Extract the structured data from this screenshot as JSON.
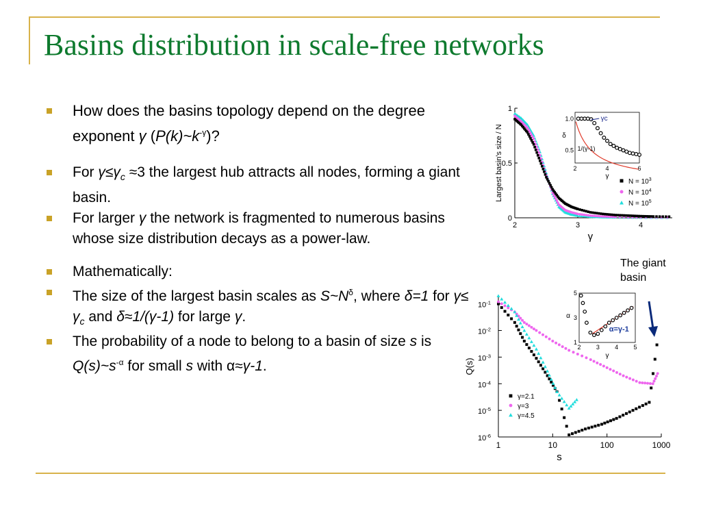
{
  "slide": {
    "title": "Basins distribution in scale-free networks",
    "bullets": [
      {
        "parts": [
          {
            "t": "How does the basins topology depend on the degree exponent "
          },
          {
            "t": "γ",
            "i": true
          },
          {
            "t": " ("
          },
          {
            "t": "P(k)~k",
            "i": true
          },
          {
            "t": "-γ",
            "sup": true
          },
          {
            "t": ")?"
          }
        ]
      },
      {
        "parts": [
          {
            "t": "For "
          },
          {
            "t": "γ≤γ",
            "i": true
          },
          {
            "t": "c",
            "sub": true
          },
          {
            "t": " ≈3 the largest hub attracts all nodes, forming a giant basin."
          }
        ]
      },
      {
        "parts": [
          {
            "t": "For larger "
          },
          {
            "t": "γ",
            "i": true
          },
          {
            "t": " the network is fragmented to numerous basins whose size distribution decays as a power-law."
          }
        ]
      },
      {
        "parts": [
          {
            "t": "Mathematically:"
          }
        ]
      },
      {
        "parts": [
          {
            "t": "The size of the largest basin scales as "
          },
          {
            "t": "S~N",
            "i": true
          },
          {
            "t": "δ",
            "sup": true
          },
          {
            "t": ", where "
          },
          {
            "t": "δ=1",
            "i": true
          },
          {
            "t": " for "
          },
          {
            "t": "γ≤ γ",
            "i": true
          },
          {
            "t": "c",
            "sub": true
          },
          {
            "t": " and "
          },
          {
            "t": "δ≈1/(γ-1)",
            "i": true
          },
          {
            "t": " for large "
          },
          {
            "t": "γ",
            "i": true
          },
          {
            "t": "."
          }
        ]
      },
      {
        "parts": [
          {
            "t": "The probability of a node to belong to a basin of size "
          },
          {
            "t": "s",
            "i": true
          },
          {
            "t": " is "
          },
          {
            "t": "Q(s)~s",
            "i": true
          },
          {
            "t": "-α",
            "sup": true
          },
          {
            "t": "  for small "
          },
          {
            "t": "s",
            "i": true
          },
          {
            "t": " with α≈"
          },
          {
            "t": "γ-1",
            "i": true
          },
          {
            "t": "."
          }
        ]
      }
    ],
    "annotation": {
      "line1": "The giant",
      "line2": "basin"
    }
  },
  "chart_data": [
    {
      "type": "scatter",
      "ylabel": "Largest basin's size / N",
      "xlabel": "γ",
      "xlim": [
        2,
        4.5
      ],
      "ylim": [
        0,
        1
      ],
      "xticks": [
        2,
        3,
        4
      ],
      "yticks": [
        0,
        0.5,
        1
      ],
      "legend_position": "right",
      "series": [
        {
          "name": "N = 10^3",
          "color": "#000000",
          "marker": "square",
          "x": [
            2.0,
            2.1,
            2.2,
            2.3,
            2.4,
            2.5,
            2.6,
            2.7,
            2.8,
            2.9,
            3.0,
            3.2,
            3.4,
            3.6,
            3.8,
            4.0,
            4.2,
            4.5
          ],
          "y": [
            0.9,
            0.85,
            0.78,
            0.67,
            0.52,
            0.37,
            0.26,
            0.18,
            0.13,
            0.1,
            0.08,
            0.05,
            0.035,
            0.025,
            0.02,
            0.015,
            0.012,
            0.01
          ]
        },
        {
          "name": "N = 10^4",
          "color": "#ee66ee",
          "marker": "circle",
          "x": [
            2.0,
            2.1,
            2.2,
            2.3,
            2.4,
            2.5,
            2.6,
            2.7,
            2.8,
            2.9,
            3.0,
            3.2,
            3.4,
            3.6,
            4.0,
            4.5
          ],
          "y": [
            0.93,
            0.88,
            0.82,
            0.72,
            0.57,
            0.39,
            0.23,
            0.12,
            0.07,
            0.05,
            0.035,
            0.02,
            0.012,
            0.008,
            0.005,
            0.003
          ]
        },
        {
          "name": "N = 10^5",
          "color": "#22dddd",
          "marker": "triangle",
          "x": [
            2.0,
            2.1,
            2.2,
            2.3,
            2.4,
            2.5,
            2.6,
            2.7,
            2.8,
            2.9,
            3.0,
            3.2,
            3.4,
            3.6,
            4.0,
            4.5
          ],
          "y": [
            0.95,
            0.91,
            0.85,
            0.75,
            0.6,
            0.41,
            0.22,
            0.1,
            0.05,
            0.03,
            0.02,
            0.01,
            0.006,
            0.004,
            0.002,
            0.001
          ]
        }
      ],
      "inset": {
        "xlabel": "γ",
        "ylabel": "δ",
        "xlim": [
          2,
          6
        ],
        "ylim": [
          0.3,
          1.1
        ],
        "xticks": [
          2,
          4,
          6
        ],
        "yticks": [
          0.5,
          1.0
        ],
        "labels": [
          "γc",
          "1/(γ-1)"
        ],
        "points": {
          "x": [
            2.2,
            2.4,
            2.6,
            2.8,
            3.0,
            3.2,
            3.4,
            3.6,
            3.8,
            4.0,
            4.2,
            4.4,
            4.6,
            4.8,
            5.0,
            5.2,
            5.4,
            5.6,
            5.8,
            6.0
          ],
          "y": [
            1.0,
            1.0,
            1.0,
            1.0,
            0.99,
            0.93,
            0.85,
            0.77,
            0.7,
            0.65,
            0.6,
            0.57,
            0.54,
            0.52,
            0.5,
            0.48,
            0.46,
            0.45,
            0.44,
            0.43
          ]
        },
        "curve_color": "#e03a2a"
      }
    },
    {
      "type": "scatter",
      "ylabel": "Q(s)",
      "xlabel": "s",
      "xscale": "log",
      "yscale": "log",
      "xlim": [
        1,
        1000
      ],
      "ylim": [
        1e-06,
        0.2
      ],
      "xticks": [
        1,
        10,
        100,
        1000
      ],
      "yticks": [
        "10^-6",
        "10^-5",
        "10^-4",
        "10^-3",
        "10^-2",
        "10^-1"
      ],
      "legend_position": "bottom-left",
      "series": [
        {
          "name": "γ=2.1",
          "color": "#000000",
          "marker": "square",
          "x": [
            1,
            2,
            3,
            5,
            8,
            12,
            20,
            40,
            80,
            150,
            300,
            600,
            900
          ],
          "y": [
            0.1,
            0.02,
            0.004,
            0.0009,
            0.0002,
            5e-05,
            1.2e-06,
            2e-06,
            3e-06,
            5e-06,
            1e-05,
            2e-05,
            0.01
          ]
        },
        {
          "name": "γ=3",
          "color": "#ee66ee",
          "marker": "circle",
          "x": [
            1,
            2,
            3,
            5,
            10,
            20,
            50,
            100,
            200,
            400,
            700,
            900
          ],
          "y": [
            0.12,
            0.05,
            0.02,
            0.01,
            0.004,
            0.0018,
            0.0008,
            0.0004,
            0.0002,
            0.00011,
            0.0001,
            0.0003
          ]
        },
        {
          "name": "γ=4.5",
          "color": "#22dddd",
          "marker": "triangle",
          "x": [
            1,
            2,
            3,
            5,
            8,
            12,
            20,
            30
          ],
          "y": [
            0.2,
            0.05,
            0.01,
            0.002,
            0.0003,
            5e-05,
            1.2e-05,
            3e-05
          ]
        }
      ],
      "inset": {
        "xlabel": "γ",
        "ylabel": "α",
        "xlim": [
          2,
          5
        ],
        "ylim": [
          1,
          5
        ],
        "xticks": [
          2,
          3,
          4,
          5
        ],
        "yticks": [
          1,
          3,
          5
        ],
        "label": "α=γ-1",
        "points": {
          "x": [
            2.1,
            2.2,
            2.3,
            2.4,
            2.6,
            2.8,
            3.0,
            3.2,
            3.4,
            3.6,
            3.8,
            4.0,
            4.2,
            4.4,
            4.6,
            4.8
          ],
          "y": [
            4.8,
            4.2,
            3.5,
            2.6,
            1.8,
            1.6,
            1.7,
            2.0,
            2.3,
            2.6,
            2.8,
            3.0,
            3.2,
            3.4,
            3.6,
            3.8
          ]
        },
        "curve_color": "#e03a2a"
      }
    }
  ]
}
